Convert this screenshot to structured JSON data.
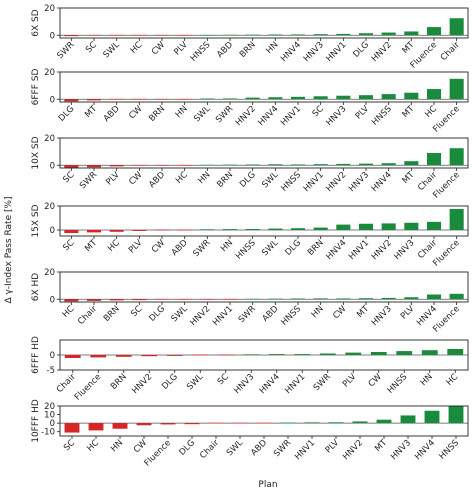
{
  "xlabel": "Plan",
  "ylabel": "Δ γ-Index Pass Rate [%]",
  "colors": {
    "negative": "#d62728",
    "positive": "#1a8a3c",
    "zero_line": "#555555",
    "axes": "#222222"
  },
  "chart_data": [
    {
      "type": "bar",
      "panel_label": "6X SD",
      "ylim": [
        -2,
        20
      ],
      "yticks": [
        0,
        20
      ],
      "categories": [
        "SWR",
        "SC",
        "SWL",
        "HC",
        "CW",
        "PLV",
        "HNSS",
        "ABD",
        "BRN",
        "HN",
        "HNV4",
        "HNV3",
        "HNV1",
        "DLG",
        "HNV2",
        "MT",
        "Fluence",
        "Chair"
      ],
      "values": [
        -0.6,
        -0.5,
        -0.4,
        -0.3,
        -0.2,
        -0.1,
        0,
        0.1,
        0.2,
        0.3,
        0.6,
        0.8,
        1.0,
        1.5,
        2.0,
        2.8,
        6.0,
        12.5
      ]
    },
    {
      "type": "bar",
      "panel_label": "6FFF SD",
      "ylim": [
        -2,
        20
      ],
      "yticks": [
        0,
        20
      ],
      "categories": [
        "DLG",
        "MT",
        "ABD",
        "CW",
        "BRN",
        "HN",
        "SWL",
        "SWR",
        "HNV2",
        "HNV4",
        "HNV1",
        "SC",
        "HNV3",
        "PLV",
        "HNSS",
        "MT",
        "HC",
        "Fluence"
      ],
      "values": [
        -1.5,
        -0.8,
        -0.5,
        -0.3,
        -0.2,
        -0.1,
        0.3,
        0.6,
        1.2,
        1.5,
        1.8,
        2.2,
        2.6,
        3.0,
        3.8,
        4.8,
        7.5,
        15.0
      ]
    },
    {
      "type": "bar",
      "panel_label": "10X SD",
      "ylim": [
        -2,
        20
      ],
      "yticks": [
        0,
        20
      ],
      "categories": [
        "SC",
        "SWR",
        "PLV",
        "CW",
        "ABD",
        "HC",
        "HN",
        "BRN",
        "DLG",
        "SWL",
        "HNSS",
        "HNV1",
        "HNV2",
        "HNV3",
        "HNV4",
        "MT",
        "Chair",
        "Fluence"
      ],
      "values": [
        -2.0,
        -1.5,
        -0.8,
        -0.3,
        -0.2,
        -0.1,
        0.1,
        0.2,
        0.3,
        0.5,
        0.6,
        0.8,
        1.0,
        1.2,
        1.5,
        3.0,
        9.0,
        12.5
      ]
    },
    {
      "type": "bar",
      "panel_label": "15X SD",
      "ylim": [
        -5,
        20
      ],
      "yticks": [
        0,
        20
      ],
      "categories": [
        "SC",
        "MT",
        "HC",
        "PLV",
        "CW",
        "ABD",
        "SWR",
        "HN",
        "HNSS",
        "SWL",
        "DLG",
        "BRN",
        "HNV4",
        "HNV1",
        "HNV2",
        "HNV3",
        "Chair",
        "Fluence"
      ],
      "values": [
        -2.5,
        -2.0,
        -1.5,
        -0.8,
        -0.3,
        -0.2,
        0.3,
        0.5,
        0.8,
        1.2,
        1.5,
        2.0,
        4.5,
        5.2,
        5.5,
        6.0,
        6.8,
        17.5
      ]
    },
    {
      "type": "bar",
      "panel_label": "6X HD",
      "ylim": [
        -2,
        20
      ],
      "yticks": [
        0,
        20
      ],
      "categories": [
        "HC",
        "Chair",
        "BRN",
        "SC",
        "DLG",
        "SWL",
        "HNV2",
        "HNV1",
        "SWR",
        "ABD",
        "HNSS",
        "HN",
        "CW",
        "MT",
        "HNV3",
        "PLV",
        "HNV4",
        "Fluence"
      ],
      "values": [
        -1.5,
        -1.2,
        -0.8,
        -0.6,
        -0.4,
        -0.3,
        -0.2,
        -0.1,
        0.1,
        0.2,
        0.3,
        0.4,
        0.6,
        0.8,
        1.0,
        1.5,
        3.5,
        4.0
      ]
    },
    {
      "type": "bar",
      "panel_label": "6FFF HD",
      "ylim": [
        -5,
        5
      ],
      "yticks": [
        -5,
        0
      ],
      "categories": [
        "Chair",
        "Fluence",
        "BRN",
        "HNV2",
        "DLG",
        "SWL",
        "SC",
        "HNV3",
        "HNV4",
        "HNV1",
        "SWR",
        "PLV",
        "CW",
        "HNSS",
        "HN",
        "HC"
      ],
      "values": [
        -1.0,
        -0.8,
        -0.6,
        -0.4,
        -0.3,
        -0.2,
        -0.1,
        0.1,
        0.2,
        0.3,
        0.5,
        0.8,
        1.0,
        1.3,
        1.6,
        2.0
      ]
    },
    {
      "type": "bar",
      "panel_label": "10FFF HD",
      "ylim": [
        -15,
        20
      ],
      "yticks": [
        -10,
        0,
        10,
        20
      ],
      "categories": [
        "SC",
        "HC",
        "HN",
        "CW",
        "Fluence",
        "DLG",
        "Chair",
        "SWL",
        "ABD",
        "SWR",
        "HNV1",
        "PLV",
        "HNV2",
        "MT",
        "HNV3",
        "HNV4",
        "HNSS"
      ],
      "values": [
        -11.0,
        -8.5,
        -6.5,
        -2.5,
        -1.5,
        -1.2,
        -0.8,
        -0.5,
        -0.3,
        0.2,
        0.5,
        1.0,
        2.0,
        4.0,
        9.0,
        14.5,
        20.0
      ]
    }
  ]
}
